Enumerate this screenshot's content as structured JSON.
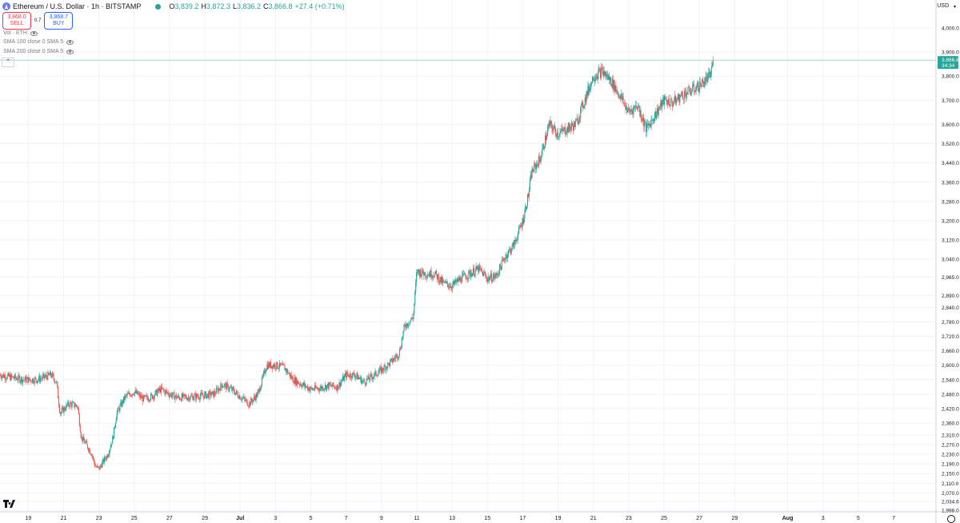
{
  "header": {
    "symbol_title": "Ethereum / U.S. Dollar · 1h · BITSTAMP",
    "open_label": "O",
    "open_value": "3,839.2",
    "high_label": "H",
    "high_value": "3,872.3",
    "low_label": "L",
    "low_value": "3,836.2",
    "close_label": "C",
    "close_value": "3,866.8",
    "change": "+27.4 (+0.71%)"
  },
  "trade": {
    "sell_price": "3,868.0",
    "sell_label": "SELL",
    "spread": "0.7",
    "buy_price": "3,868.7",
    "buy_label": "BUY"
  },
  "indicators": [
    {
      "label": "Vol · ETH"
    },
    {
      "label": "SMA 100 close 0 SMA 5"
    },
    {
      "label": "SMA 200 close 0 SMA 5"
    }
  ],
  "price_axis": {
    "currency": "USD",
    "last_price": "3,866.8",
    "countdown": "34:34"
  },
  "colors": {
    "up": "#26a69a",
    "down": "#ef5350",
    "grid": "#f0f3fa",
    "last_price_line": "#26a69a"
  },
  "chart_data": {
    "type": "candlestick",
    "interval": "1h",
    "y_ticks": [
      1998.0,
      2034.6,
      2070.0,
      2110.0,
      2150.0,
      2190.0,
      2230.0,
      2270.0,
      2310.0,
      2360.0,
      2420.0,
      2480.0,
      2540.0,
      2600.0,
      2660.0,
      2720.0,
      2780.0,
      2840.0,
      2890.0,
      2965.0,
      3040.0,
      3120.0,
      3200.0,
      3280.0,
      3360.0,
      3440.0,
      3520.0,
      3600.0,
      3700.0,
      3800.0,
      3900.0,
      4000.0
    ],
    "y_tick_labels": [
      "1,998.0",
      "2,034.6",
      "2,070.0",
      "2,110.0",
      "2,150.0",
      "2,190.0",
      "2,230.0",
      "2,270.0",
      "2,310.0",
      "2,360.0",
      "2,420.0",
      "2,480.0",
      "2,540.0",
      "2,600.0",
      "2,660.0",
      "2,720.0",
      "2,780.0",
      "2,840.0",
      "2,890.0",
      "2,965.0",
      "3,040.0",
      "3,120.0",
      "3,200.0",
      "3,280.0",
      "3,360.0",
      "3,440.0",
      "3,520.0",
      "3,600.0",
      "3,700.0",
      "3,800.0",
      "3,900.0",
      "4,000.0"
    ],
    "x_ticks": [
      {
        "day": 19,
        "label": "19"
      },
      {
        "day": 21,
        "label": "21"
      },
      {
        "day": 23,
        "label": "23"
      },
      {
        "day": 25,
        "label": "25"
      },
      {
        "day": 27,
        "label": "27"
      },
      {
        "day": 29,
        "label": "29"
      },
      {
        "day": 31,
        "label": "Jul"
      },
      {
        "day": 33,
        "label": "3"
      },
      {
        "day": 35,
        "label": "5"
      },
      {
        "day": 37,
        "label": "7"
      },
      {
        "day": 39,
        "label": "9"
      },
      {
        "day": 41,
        "label": "11"
      },
      {
        "day": 43,
        "label": "13"
      },
      {
        "day": 45,
        "label": "15"
      },
      {
        "day": 47,
        "label": "17"
      },
      {
        "day": 49,
        "label": "19"
      },
      {
        "day": 51,
        "label": "21"
      },
      {
        "day": 53,
        "label": "23"
      },
      {
        "day": 55,
        "label": "25"
      },
      {
        "day": 57,
        "label": "27"
      },
      {
        "day": 59,
        "label": "29"
      },
      {
        "day": 62,
        "label": "Aug"
      },
      {
        "day": 64,
        "label": "3"
      },
      {
        "day": 66,
        "label": "5"
      },
      {
        "day": 68,
        "label": "7"
      }
    ],
    "x_range_days": [
      17.4,
      70.4
    ],
    "price_path": [
      [
        17.4,
        2560
      ],
      [
        18.0,
        2550
      ],
      [
        18.8,
        2540
      ],
      [
        19.5,
        2540
      ],
      [
        20.3,
        2560
      ],
      [
        20.6,
        2530
      ],
      [
        20.8,
        2400
      ],
      [
        21.3,
        2440
      ],
      [
        21.8,
        2430
      ],
      [
        22.0,
        2300
      ],
      [
        22.3,
        2270
      ],
      [
        22.6,
        2230
      ],
      [
        22.8,
        2180
      ],
      [
        23.0,
        2170
      ],
      [
        23.5,
        2230
      ],
      [
        23.8,
        2300
      ],
      [
        24.0,
        2400
      ],
      [
        24.5,
        2470
      ],
      [
        25.0,
        2490
      ],
      [
        25.5,
        2460
      ],
      [
        26.0,
        2470
      ],
      [
        26.5,
        2500
      ],
      [
        27.0,
        2480
      ],
      [
        27.5,
        2465
      ],
      [
        28.5,
        2470
      ],
      [
        29.5,
        2480
      ],
      [
        30.0,
        2520
      ],
      [
        30.5,
        2500
      ],
      [
        31.0,
        2470
      ],
      [
        31.5,
        2440
      ],
      [
        32.0,
        2480
      ],
      [
        32.5,
        2600
      ],
      [
        33.0,
        2600
      ],
      [
        33.5,
        2590
      ],
      [
        34.0,
        2540
      ],
      [
        34.5,
        2520
      ],
      [
        35.0,
        2500
      ],
      [
        35.5,
        2505
      ],
      [
        36.0,
        2515
      ],
      [
        36.5,
        2510
      ],
      [
        37.0,
        2560
      ],
      [
        37.5,
        2560
      ],
      [
        38.0,
        2530
      ],
      [
        38.5,
        2555
      ],
      [
        39.0,
        2580
      ],
      [
        39.5,
        2610
      ],
      [
        40.0,
        2650
      ],
      [
        40.3,
        2760
      ],
      [
        40.8,
        2800
      ],
      [
        41.0,
        2990
      ],
      [
        41.5,
        2980
      ],
      [
        42.0,
        2980
      ],
      [
        42.5,
        2940
      ],
      [
        43.0,
        2930
      ],
      [
        43.5,
        2960
      ],
      [
        44.0,
        2980
      ],
      [
        44.5,
        3000
      ],
      [
        45.0,
        2960
      ],
      [
        45.5,
        2970
      ],
      [
        46.0,
        3050
      ],
      [
        46.5,
        3100
      ],
      [
        47.0,
        3200
      ],
      [
        47.3,
        3300
      ],
      [
        47.5,
        3400
      ],
      [
        48.0,
        3460
      ],
      [
        48.5,
        3600
      ],
      [
        49.0,
        3560
      ],
      [
        49.5,
        3580
      ],
      [
        50.0,
        3600
      ],
      [
        50.5,
        3700
      ],
      [
        51.0,
        3800
      ],
      [
        51.5,
        3820
      ],
      [
        52.0,
        3780
      ],
      [
        52.5,
        3720
      ],
      [
        53.0,
        3650
      ],
      [
        53.5,
        3680
      ],
      [
        54.0,
        3580
      ],
      [
        54.5,
        3640
      ],
      [
        55.0,
        3700
      ],
      [
        55.5,
        3690
      ],
      [
        56.0,
        3720
      ],
      [
        56.5,
        3740
      ],
      [
        57.0,
        3760
      ],
      [
        57.3,
        3780
      ],
      [
        57.6,
        3800
      ],
      [
        57.8,
        3866.8
      ]
    ]
  }
}
